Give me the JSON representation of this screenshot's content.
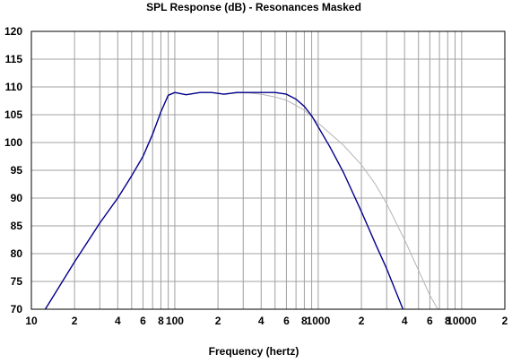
{
  "chart_data": {
    "type": "line",
    "title": "SPL Response (dB) - Resonances Masked",
    "xlabel": "Frequency (hertz)",
    "ylabel": "",
    "x_scale": "log",
    "xlim": [
      10,
      20000
    ],
    "ylim": [
      70,
      120
    ],
    "grid": true,
    "y_ticks": [
      "120",
      "115",
      "110",
      "105",
      "100",
      "95",
      "90",
      "85",
      "80",
      "75",
      "70"
    ],
    "x_tick_labels": [
      {
        "x": 10,
        "label": "10"
      },
      {
        "x": 20,
        "label": "2"
      },
      {
        "x": 40,
        "label": "4"
      },
      {
        "x": 60,
        "label": "6"
      },
      {
        "x": 80,
        "label": "8"
      },
      {
        "x": 100,
        "label": "100"
      },
      {
        "x": 200,
        "label": "2"
      },
      {
        "x": 400,
        "label": "4"
      },
      {
        "x": 600,
        "label": "6"
      },
      {
        "x": 800,
        "label": "8"
      },
      {
        "x": 1000,
        "label": "1000"
      },
      {
        "x": 2000,
        "label": "2"
      },
      {
        "x": 4000,
        "label": "4"
      },
      {
        "x": 6000,
        "label": "6"
      },
      {
        "x": 8000,
        "label": "8"
      },
      {
        "x": 10000,
        "label": "10000"
      },
      {
        "x": 20000,
        "label": "2"
      }
    ],
    "series": [
      {
        "color": "#00008b",
        "x": [
          12.5,
          20,
          30,
          40,
          50,
          60,
          70,
          80,
          90,
          100,
          120,
          150,
          180,
          220,
          270,
          330,
          400,
          500,
          600,
          700,
          800,
          900,
          1000,
          1200,
          1500,
          2000,
          2500,
          3000,
          3500,
          3900
        ],
        "y": [
          70,
          78.5,
          85.5,
          90,
          94,
          97.5,
          101.5,
          105.5,
          108.5,
          109,
          108.6,
          109,
          109,
          108.7,
          109,
          109,
          109,
          109,
          108.7,
          107.8,
          106.5,
          104.8,
          102.8,
          99.3,
          94.6,
          87.6,
          81.8,
          77.3,
          73,
          70
        ]
      },
      {
        "color": "#b4b4b4",
        "x": [
          12.5,
          20,
          30,
          40,
          50,
          60,
          70,
          80,
          90,
          100,
          120,
          150,
          180,
          220,
          270,
          330,
          400,
          500,
          600,
          700,
          800,
          900,
          1000,
          1200,
          1500,
          2000,
          2500,
          3000,
          3500,
          4000,
          5000,
          6000,
          7000
        ],
        "y": [
          70,
          78.5,
          85.5,
          90,
          94,
          97.5,
          101.5,
          105.5,
          108.5,
          109,
          108.6,
          109,
          109,
          108.7,
          108.9,
          108.9,
          108.7,
          108.2,
          107.6,
          106.7,
          105.8,
          104.6,
          103.5,
          101.7,
          99.5,
          96,
          92.5,
          89,
          85.5,
          82.5,
          77,
          72.5,
          69.5
        ]
      }
    ]
  }
}
